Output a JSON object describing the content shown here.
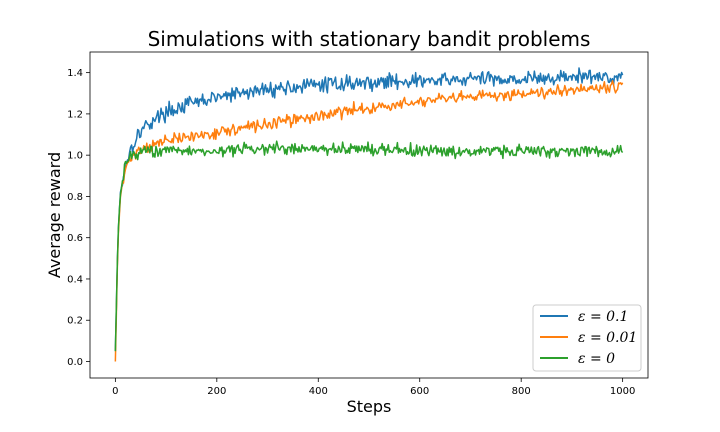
{
  "chart_data": {
    "type": "line",
    "title": "Simulations with stationary bandit problems",
    "xlabel": "Steps",
    "ylabel": "Average reward",
    "xlim": [
      -50,
      1050
    ],
    "ylim": [
      -0.08,
      1.5
    ],
    "xticks": [
      0,
      200,
      400,
      600,
      800,
      1000
    ],
    "yticks": [
      0.0,
      0.2,
      0.4,
      0.6,
      0.8,
      1.0,
      1.2,
      1.4
    ],
    "grid": false,
    "legend_position": "lower-right",
    "series": [
      {
        "name": "ε = 0.1",
        "color": "#1f77b4",
        "x": [
          0,
          5,
          10,
          20,
          30,
          40,
          50,
          75,
          100,
          150,
          200,
          250,
          300,
          350,
          400,
          450,
          500,
          550,
          600,
          650,
          700,
          750,
          800,
          850,
          900,
          950,
          1000
        ],
        "values": [
          0.05,
          0.6,
          0.82,
          0.95,
          1.03,
          1.08,
          1.12,
          1.17,
          1.21,
          1.25,
          1.28,
          1.3,
          1.32,
          1.33,
          1.34,
          1.35,
          1.35,
          1.36,
          1.36,
          1.36,
          1.37,
          1.37,
          1.37,
          1.37,
          1.38,
          1.38,
          1.38
        ]
      },
      {
        "name": "ε = 0.01",
        "color": "#ff7f0e",
        "x": [
          0,
          5,
          10,
          20,
          30,
          40,
          50,
          75,
          100,
          150,
          200,
          250,
          300,
          350,
          400,
          450,
          500,
          550,
          600,
          650,
          700,
          750,
          800,
          850,
          900,
          950,
          1000
        ],
        "values": [
          0.0,
          0.58,
          0.8,
          0.93,
          0.99,
          1.01,
          1.03,
          1.05,
          1.07,
          1.09,
          1.11,
          1.13,
          1.15,
          1.17,
          1.19,
          1.21,
          1.23,
          1.24,
          1.26,
          1.27,
          1.28,
          1.29,
          1.3,
          1.31,
          1.32,
          1.33,
          1.34
        ]
      },
      {
        "name": "ε = 0",
        "color": "#2ca02c",
        "x": [
          0,
          5,
          10,
          20,
          30,
          40,
          50,
          75,
          100,
          150,
          200,
          250,
          300,
          350,
          400,
          450,
          500,
          550,
          600,
          650,
          700,
          750,
          800,
          850,
          900,
          950,
          1000
        ],
        "values": [
          0.05,
          0.6,
          0.83,
          0.96,
          1.0,
          1.01,
          1.02,
          1.02,
          1.02,
          1.02,
          1.02,
          1.03,
          1.03,
          1.03,
          1.03,
          1.03,
          1.03,
          1.03,
          1.02,
          1.02,
          1.02,
          1.02,
          1.02,
          1.02,
          1.02,
          1.02,
          1.02
        ]
      }
    ]
  },
  "legend": {
    "items": [
      {
        "label": "ε = 0.1",
        "color": "#1f77b4"
      },
      {
        "label": "ε = 0.01",
        "color": "#ff7f0e"
      },
      {
        "label": "ε = 0",
        "color": "#2ca02c"
      }
    ]
  }
}
